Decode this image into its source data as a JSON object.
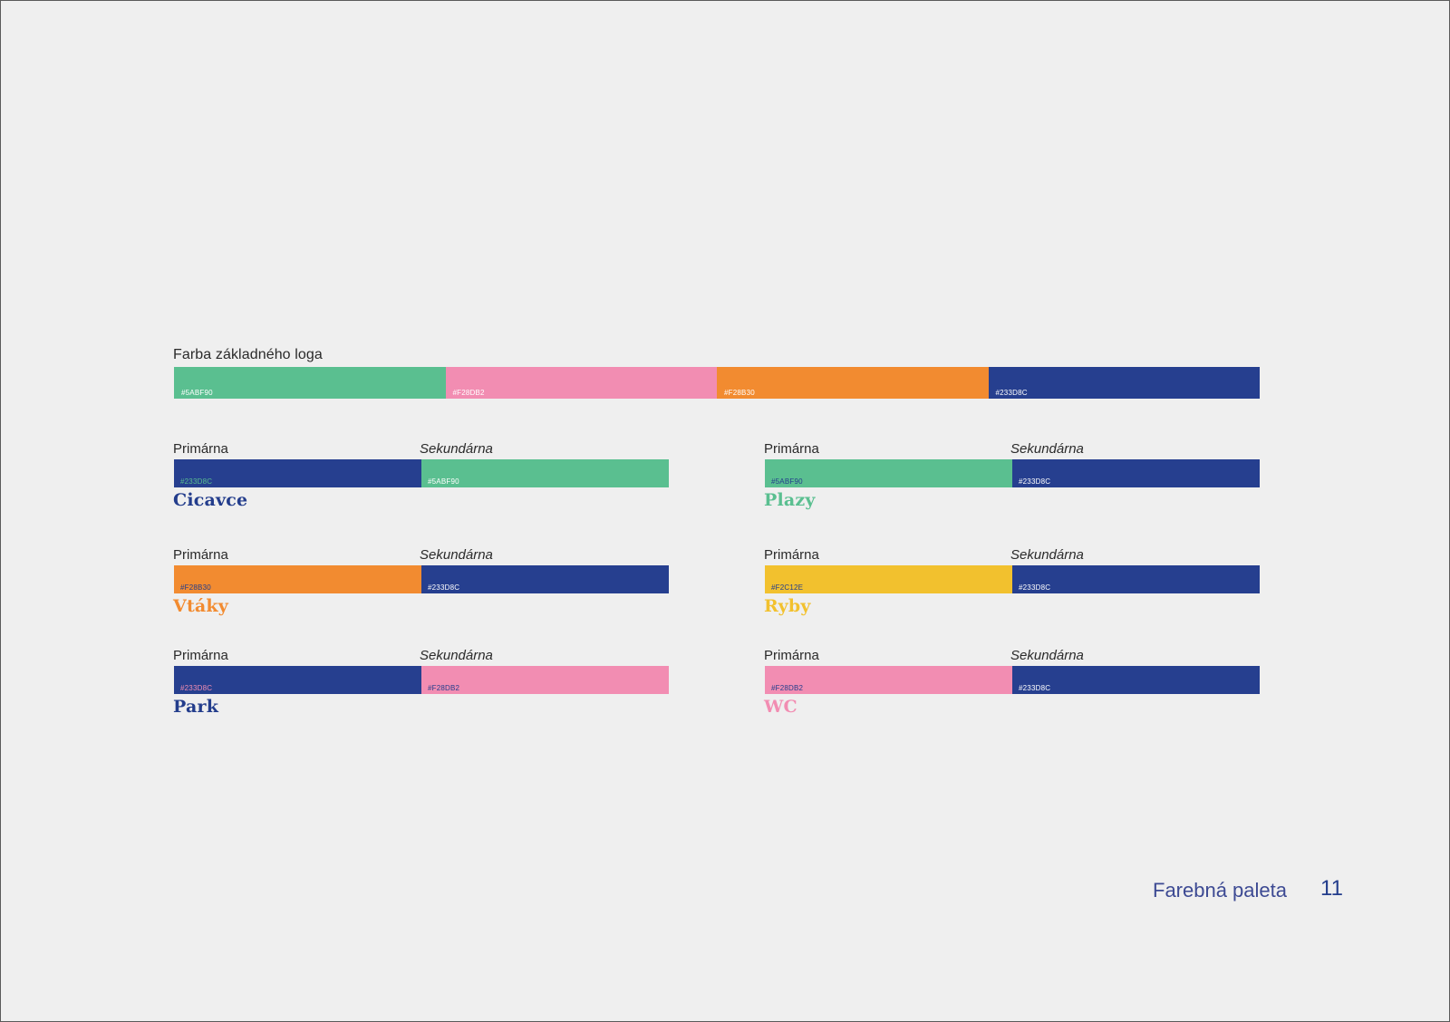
{
  "main_palette": {
    "label": "Farba základného loga",
    "swatches": [
      {
        "code": "#5ABF90",
        "color": "#5abf90",
        "text_color": "#ffffff"
      },
      {
        "code": "#F28DB2",
        "color": "#f28db2",
        "text_color": "#ffffff"
      },
      {
        "code": "#F28B30",
        "color": "#f28b30",
        "text_color": "#ffffff"
      },
      {
        "code": "#233D8C",
        "color": "#263f8f",
        "text_color": "#ffffff"
      }
    ]
  },
  "categories": [
    {
      "name": "Cicavce",
      "name_color": "#233d8c",
      "primary_label": "Primárna",
      "secondary_label": "Sekundárna",
      "primary": {
        "code": "#233D8C",
        "color": "#263f8f",
        "text_color": "#5abf90"
      },
      "secondary": {
        "code": "#5ABF90",
        "color": "#5abf90",
        "text_color": "#ffffff"
      }
    },
    {
      "name": "Plazy",
      "name_color": "#5abf90",
      "primary_label": "Primárna",
      "secondary_label": "Sekundárna",
      "primary": {
        "code": "#5ABF90",
        "color": "#5abf90",
        "text_color": "#233d8c"
      },
      "secondary": {
        "code": "#233D8C",
        "color": "#263f8f",
        "text_color": "#ffffff"
      }
    },
    {
      "name": "Vtáky",
      "name_color": "#f28b30",
      "primary_label": "Primárna",
      "secondary_label": "Sekundárna",
      "primary": {
        "code": "#F28B30",
        "color": "#f28b30",
        "text_color": "#233d8c"
      },
      "secondary": {
        "code": "#233D8C",
        "color": "#263f8f",
        "text_color": "#ffffff"
      }
    },
    {
      "name": "Ryby",
      "name_color": "#f2c12e",
      "primary_label": "Primárna",
      "secondary_label": "Sekundárna",
      "primary": {
        "code": "#F2C12E",
        "color": "#f2c12e",
        "text_color": "#233d8c"
      },
      "secondary": {
        "code": "#233D8C",
        "color": "#263f8f",
        "text_color": "#ffffff"
      }
    },
    {
      "name": "Park",
      "name_color": "#233d8c",
      "primary_label": "Primárna",
      "secondary_label": "Sekundárna",
      "primary": {
        "code": "#233D8C",
        "color": "#263f8f",
        "text_color": "#f28db2"
      },
      "secondary": {
        "code": "#F28DB2",
        "color": "#f28db2",
        "text_color": "#233d8c"
      }
    },
    {
      "name": "WC",
      "name_color": "#f28db2",
      "primary_label": "Primárna",
      "secondary_label": "Sekundárna",
      "primary": {
        "code": "#F28DB2",
        "color": "#f28db2",
        "text_color": "#233d8c"
      },
      "secondary": {
        "code": "#233D8C",
        "color": "#263f8f",
        "text_color": "#ffffff"
      }
    }
  ],
  "footer": {
    "title": "Farebná paleta",
    "page_number": "11"
  }
}
